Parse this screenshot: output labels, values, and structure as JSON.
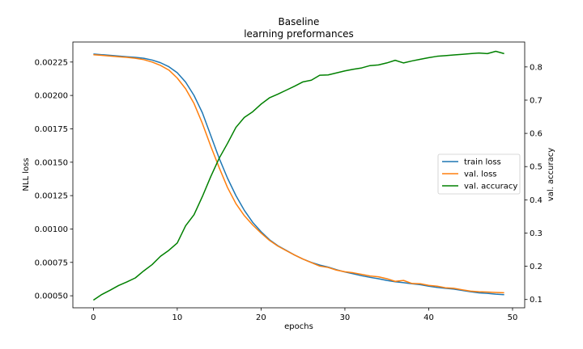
{
  "chart_data": {
    "type": "line",
    "title": "Baseline",
    "subtitle": "learning preformances",
    "xlabel": "epochs",
    "ylabel": "NLL loss",
    "y2label": "val. accuracy",
    "xlim": [
      -2.45,
      51.45
    ],
    "ylim": [
      0.00041,
      0.0024
    ],
    "y2lim": [
      0.075,
      0.875
    ],
    "x_ticks": [
      0,
      10,
      20,
      30,
      40,
      50
    ],
    "y_ticks": [
      0.0005,
      0.00075,
      0.001,
      0.00125,
      0.0015,
      0.00175,
      0.002,
      0.00225
    ],
    "y_tick_labels": [
      "0.00050",
      "0.00075",
      "0.00100",
      "0.00125",
      "0.00150",
      "0.00175",
      "0.00200",
      "0.00225"
    ],
    "y2_ticks": [
      0.1,
      0.2,
      0.3,
      0.4,
      0.5,
      0.6,
      0.7,
      0.8
    ],
    "y2_tick_labels": [
      "0.1",
      "0.2",
      "0.3",
      "0.4",
      "0.5",
      "0.6",
      "0.7",
      "0.8"
    ],
    "grid": false,
    "legend_position": "center-right",
    "series": [
      {
        "name": "train loss",
        "axis": "left",
        "color": "#1f77b4",
        "x": [
          0,
          1,
          2,
          3,
          4,
          5,
          6,
          7,
          8,
          9,
          10,
          11,
          12,
          13,
          14,
          15,
          16,
          17,
          18,
          19,
          20,
          21,
          22,
          23,
          24,
          25,
          26,
          27,
          28,
          29,
          30,
          31,
          32,
          33,
          34,
          35,
          36,
          37,
          38,
          39,
          40,
          41,
          42,
          43,
          44,
          45,
          46,
          47,
          48,
          49
        ],
        "values": [
          0.00231,
          0.002305,
          0.0023,
          0.002295,
          0.00229,
          0.002285,
          0.002278,
          0.002265,
          0.002245,
          0.002215,
          0.00217,
          0.0021,
          0.002,
          0.00187,
          0.0017,
          0.00153,
          0.00138,
          0.00125,
          0.00114,
          0.00105,
          0.00098,
          0.00092,
          0.000875,
          0.00084,
          0.000805,
          0.000775,
          0.00075,
          0.00073,
          0.000715,
          0.000695,
          0.000678,
          0.000665,
          0.00065,
          0.000638,
          0.000628,
          0.000615,
          0.000605,
          0.000598,
          0.00059,
          0.000583,
          0.000572,
          0.000563,
          0.000556,
          0.00055,
          0.00054,
          0.00053,
          0.000522,
          0.000518,
          0.000512,
          0.000508
        ]
      },
      {
        "name": "val. loss",
        "axis": "left",
        "color": "#ff7f0e",
        "x": [
          0,
          1,
          2,
          3,
          4,
          5,
          6,
          7,
          8,
          9,
          10,
          11,
          12,
          13,
          14,
          15,
          16,
          17,
          18,
          19,
          20,
          21,
          22,
          23,
          24,
          25,
          26,
          27,
          28,
          29,
          30,
          31,
          32,
          33,
          34,
          35,
          36,
          37,
          38,
          39,
          40,
          41,
          42,
          43,
          44,
          45,
          46,
          47,
          48,
          49
        ],
        "values": [
          0.002305,
          0.0023,
          0.002295,
          0.00229,
          0.002285,
          0.002278,
          0.002268,
          0.00225,
          0.002225,
          0.00219,
          0.00213,
          0.00205,
          0.00194,
          0.00179,
          0.00162,
          0.00146,
          0.00131,
          0.00119,
          0.0011,
          0.00103,
          0.00097,
          0.000915,
          0.000872,
          0.000838,
          0.000805,
          0.000775,
          0.000748,
          0.000722,
          0.000712,
          0.000692,
          0.00068,
          0.000672,
          0.00066,
          0.000648,
          0.000642,
          0.000628,
          0.000608,
          0.000615,
          0.000592,
          0.00059,
          0.000578,
          0.000572,
          0.00056,
          0.000556,
          0.000545,
          0.000535,
          0.00053,
          0.000528,
          0.000525,
          0.000523
        ]
      },
      {
        "name": "val. accuracy",
        "axis": "right",
        "color": "#008000",
        "x": [
          0,
          1,
          2,
          3,
          4,
          5,
          6,
          7,
          8,
          9,
          10,
          11,
          12,
          13,
          14,
          15,
          16,
          17,
          18,
          19,
          20,
          21,
          22,
          23,
          24,
          25,
          26,
          27,
          28,
          29,
          30,
          31,
          32,
          33,
          34,
          35,
          36,
          37,
          38,
          39,
          40,
          41,
          42,
          43,
          44,
          45,
          46,
          47,
          48,
          49
        ],
        "values": [
          0.098,
          0.115,
          0.128,
          0.142,
          0.153,
          0.165,
          0.186,
          0.205,
          0.23,
          0.248,
          0.27,
          0.322,
          0.355,
          0.41,
          0.47,
          0.525,
          0.57,
          0.618,
          0.648,
          0.665,
          0.688,
          0.707,
          0.718,
          0.73,
          0.742,
          0.755,
          0.76,
          0.775,
          0.776,
          0.782,
          0.788,
          0.793,
          0.797,
          0.804,
          0.806,
          0.812,
          0.82,
          0.812,
          0.818,
          0.823,
          0.828,
          0.832,
          0.834,
          0.836,
          0.838,
          0.84,
          0.842,
          0.84,
          0.847,
          0.84
        ]
      }
    ]
  }
}
